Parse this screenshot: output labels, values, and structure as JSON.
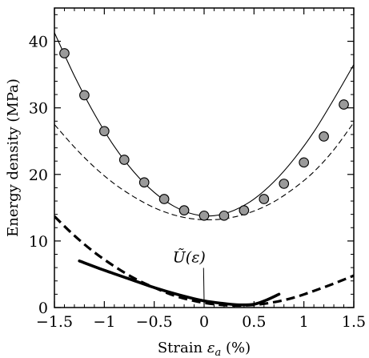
{
  "chart_data": {
    "type": "line",
    "xlabel_prefix": "Strain ",
    "xlabel_symbol": "ε",
    "xlabel_subscript": "a",
    "xlabel_unit": " (%)",
    "ylabel": "Energy density (MPa)",
    "xlim": [
      -1.5,
      1.5
    ],
    "ylim": [
      0,
      45
    ],
    "xticks": [
      -1.5,
      -1,
      -0.5,
      0,
      0.5,
      1,
      1.5
    ],
    "xtick_labels": [
      "−1.5",
      "−1",
      "−0.5",
      "0",
      "0.5",
      "1",
      "1.5"
    ],
    "yticks": [
      0,
      10,
      20,
      30,
      40
    ],
    "ytick_labels": [
      "0",
      "10",
      "20",
      "30",
      "40"
    ],
    "grid": false,
    "annotation": {
      "text": "Ũ(ε)",
      "x": -0.15,
      "y": 6.8,
      "arrow_to": [
        0.0,
        1.0
      ]
    },
    "series": [
      {
        "style": "markers",
        "x": [
          -1.4,
          -1.2,
          -1.0,
          -0.8,
          -0.6,
          -0.4,
          -0.2,
          0.0,
          0.2,
          0.4,
          0.6,
          0.8,
          1.0,
          1.2,
          1.4
        ],
        "y": [
          38.2,
          31.9,
          26.5,
          22.2,
          18.8,
          16.3,
          14.6,
          13.8,
          13.8,
          14.6,
          16.3,
          18.6,
          21.8,
          25.7,
          30.5
        ]
      },
      {
        "style": "thin-solid",
        "x": [
          -1.5,
          -1.3,
          -1.1,
          -0.9,
          -0.7,
          -0.5,
          -0.3,
          -0.1,
          0.1,
          0.3,
          0.5,
          0.7,
          0.9,
          1.1,
          1.3,
          1.5
        ],
        "y": [
          41.3,
          34.8,
          29.1,
          24.2,
          20.3,
          17.3,
          15.2,
          14.0,
          13.8,
          14.6,
          16.3,
          18.9,
          22.3,
          26.4,
          31.3,
          36.5
        ]
      },
      {
        "style": "thin-dashed",
        "x": [
          -1.5,
          -1.3,
          -1.1,
          -0.9,
          -0.7,
          -0.5,
          -0.3,
          -0.1,
          0.1,
          0.3,
          0.5,
          0.7,
          0.9,
          1.1,
          1.3,
          1.5
        ],
        "y": [
          27.5,
          24.1,
          21.1,
          18.6,
          16.6,
          15.0,
          13.9,
          13.3,
          13.2,
          13.6,
          14.5,
          15.9,
          17.9,
          20.4,
          23.7,
          27.8
        ]
      },
      {
        "style": "thick-dashed",
        "x": [
          -1.5,
          -1.3,
          -1.1,
          -0.9,
          -0.7,
          -0.5,
          -0.3,
          -0.1,
          0.1,
          0.3,
          0.5,
          0.7,
          0.9,
          1.1,
          1.3,
          1.5
        ],
        "y": [
          13.7,
          10.8,
          8.3,
          6.2,
          4.4,
          3.0,
          1.8,
          1.0,
          0.5,
          0.3,
          0.4,
          0.8,
          1.5,
          2.5,
          3.6,
          4.8
        ]
      },
      {
        "style": "thick-solid",
        "x": [
          -1.25,
          -1.0,
          -0.75,
          -0.5,
          -0.25,
          0.0,
          0.2,
          0.35,
          0.5,
          0.62,
          0.75
        ],
        "y": [
          7.0,
          5.6,
          4.3,
          3.0,
          1.9,
          1.0,
          0.6,
          0.4,
          0.5,
          1.1,
          2.0
        ]
      }
    ]
  }
}
